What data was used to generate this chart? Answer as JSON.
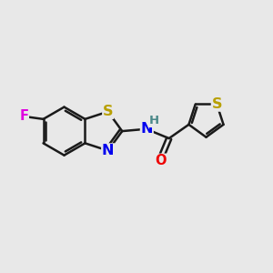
{
  "background_color": "#e8e8e8",
  "bond_color": "#1a1a1a",
  "bond_width": 1.8,
  "atom_colors": {
    "F": "#e000e0",
    "S": "#b8a000",
    "N": "#0000ee",
    "O": "#ee0000",
    "H": "#4a8888",
    "C": "#1a1a1a"
  },
  "font_size": 10.5,
  "fig_size": [
    3.0,
    3.0
  ],
  "dpi": 100,
  "xlim": [
    0,
    10
  ],
  "ylim": [
    0,
    10
  ]
}
